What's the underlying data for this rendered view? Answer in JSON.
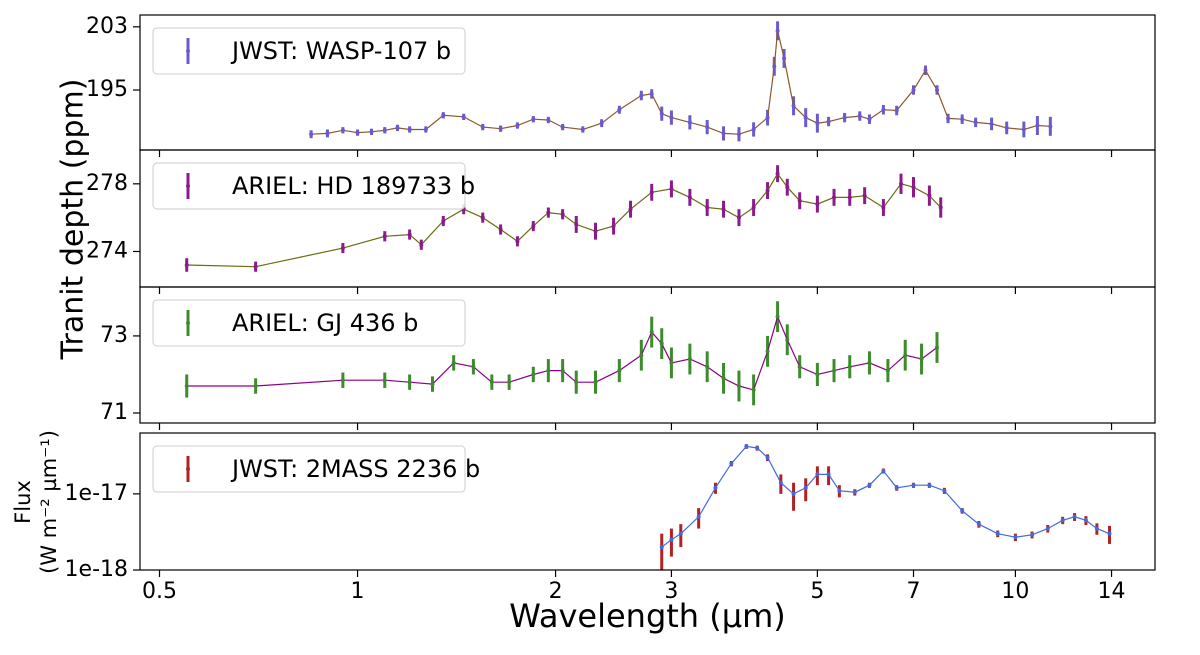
{
  "chart_data": [
    {
      "type": "errorbar",
      "ylabel": "Tranit depth (ppm)",
      "ylim": [
        187.4,
        204.5
      ],
      "yticks": [
        195,
        203
      ],
      "line_color": "#8b5a2b",
      "x": [
        0.85,
        0.9,
        0.95,
        1.0,
        1.05,
        1.1,
        1.15,
        1.2,
        1.27,
        1.35,
        1.45,
        1.55,
        1.65,
        1.75,
        1.85,
        1.95,
        2.05,
        2.2,
        2.35,
        2.5,
        2.7,
        2.8,
        2.9,
        3.0,
        3.2,
        3.4,
        3.6,
        3.8,
        4.0,
        4.2,
        4.3,
        4.35,
        4.45,
        4.6,
        4.8,
        5.0,
        5.2,
        5.5,
        5.8,
        6.0,
        6.3,
        6.6,
        7.0,
        7.3,
        7.6,
        7.9,
        8.3,
        8.7,
        9.2,
        9.7,
        10.3,
        10.8,
        11.3
      ],
      "series": [
        {
          "name": "JWST: WASP-107 b",
          "color": "#6a5acd",
          "values": [
            189.4,
            189.5,
            189.9,
            189.6,
            189.7,
            189.9,
            190.2,
            190.0,
            190.0,
            191.8,
            191.6,
            190.3,
            190.1,
            190.5,
            191.3,
            191.2,
            190.3,
            190.0,
            190.8,
            192.5,
            194.3,
            194.5,
            192.0,
            191.5,
            190.9,
            190.3,
            189.5,
            189.4,
            190.0,
            191.5,
            198.0,
            202.5,
            199.0,
            193.0,
            191.5,
            190.8,
            191.0,
            191.5,
            191.7,
            191.3,
            192.5,
            192.4,
            195.0,
            197.5,
            195.0,
            191.4,
            191.3,
            190.9,
            190.7,
            190.2,
            190.0,
            190.5,
            190.4
          ],
          "errors": [
            0.5,
            0.5,
            0.4,
            0.4,
            0.4,
            0.4,
            0.4,
            0.4,
            0.4,
            0.4,
            0.4,
            0.4,
            0.4,
            0.4,
            0.4,
            0.4,
            0.4,
            0.4,
            0.5,
            0.5,
            0.6,
            0.6,
            0.9,
            0.9,
            0.9,
            0.9,
            0.9,
            0.9,
            0.9,
            1.0,
            1.2,
            1.2,
            1.2,
            1.2,
            1.2,
            1.2,
            0.6,
            0.6,
            0.6,
            0.6,
            0.6,
            0.6,
            0.6,
            0.6,
            0.6,
            0.6,
            0.6,
            0.6,
            0.8,
            0.8,
            1.0,
            1.2,
            1.2
          ]
        }
      ]
    },
    {
      "type": "errorbar",
      "ylim": [
        271.9,
        280
      ],
      "yticks": [
        274,
        278
      ],
      "line_color": "#6b6b10",
      "x": [
        0.55,
        0.7,
        0.95,
        1.1,
        1.2,
        1.25,
        1.35,
        1.45,
        1.55,
        1.65,
        1.75,
        1.85,
        1.95,
        2.05,
        2.15,
        2.3,
        2.45,
        2.6,
        2.8,
        3.0,
        3.2,
        3.4,
        3.6,
        3.8,
        4.0,
        4.2,
        4.35,
        4.5,
        4.7,
        5.0,
        5.3,
        5.6,
        5.9,
        6.3,
        6.7,
        7.0,
        7.4,
        7.7
      ],
      "series": [
        {
          "name": "ARIEL: HD 189733 b",
          "color": "#8b1a8b",
          "values": [
            273.2,
            273.1,
            274.2,
            274.9,
            275.0,
            274.4,
            275.8,
            276.5,
            276.0,
            275.3,
            274.6,
            275.5,
            276.3,
            276.2,
            275.6,
            275.2,
            275.5,
            276.5,
            277.5,
            277.7,
            277.2,
            276.6,
            276.5,
            276.0,
            276.6,
            277.6,
            278.6,
            277.8,
            277.0,
            276.8,
            277.2,
            277.2,
            277.3,
            276.6,
            278.0,
            277.8,
            277.3,
            276.6
          ],
          "errors": [
            0.4,
            0.3,
            0.3,
            0.3,
            0.3,
            0.3,
            0.3,
            0.3,
            0.3,
            0.3,
            0.3,
            0.3,
            0.3,
            0.3,
            0.5,
            0.5,
            0.5,
            0.5,
            0.5,
            0.5,
            0.5,
            0.5,
            0.5,
            0.5,
            0.5,
            0.5,
            0.5,
            0.5,
            0.5,
            0.5,
            0.5,
            0.5,
            0.5,
            0.5,
            0.6,
            0.6,
            0.6,
            0.6
          ]
        }
      ]
    },
    {
      "type": "errorbar",
      "ylim": [
        70.74,
        74.27
      ],
      "yticks": [
        71,
        73
      ],
      "line_color": "#8b008b",
      "x": [
        0.55,
        0.7,
        0.95,
        1.1,
        1.2,
        1.3,
        1.4,
        1.5,
        1.6,
        1.7,
        1.85,
        1.95,
        2.05,
        2.15,
        2.3,
        2.5,
        2.7,
        2.8,
        2.9,
        3.0,
        3.2,
        3.4,
        3.6,
        3.8,
        4.0,
        4.2,
        4.35,
        4.5,
        4.7,
        5.0,
        5.3,
        5.6,
        6.0,
        6.4,
        6.8,
        7.2,
        7.6
      ],
      "series": [
        {
          "name": "ARIEL: GJ 436 b",
          "color": "#3c8c2c",
          "values": [
            71.7,
            71.7,
            71.85,
            71.85,
            71.8,
            71.75,
            72.3,
            72.2,
            71.8,
            71.8,
            72.0,
            72.1,
            72.1,
            71.8,
            71.8,
            72.1,
            72.5,
            73.1,
            72.8,
            72.3,
            72.4,
            72.2,
            71.9,
            71.7,
            71.6,
            72.6,
            73.5,
            72.9,
            72.2,
            72.0,
            72.1,
            72.2,
            72.3,
            72.1,
            72.5,
            72.4,
            72.7
          ],
          "errors": [
            0.3,
            0.2,
            0.2,
            0.2,
            0.2,
            0.2,
            0.2,
            0.2,
            0.2,
            0.2,
            0.2,
            0.3,
            0.3,
            0.3,
            0.3,
            0.3,
            0.4,
            0.4,
            0.4,
            0.4,
            0.4,
            0.4,
            0.4,
            0.4,
            0.4,
            0.4,
            0.4,
            0.4,
            0.3,
            0.3,
            0.3,
            0.3,
            0.3,
            0.3,
            0.4,
            0.4,
            0.4
          ]
        }
      ]
    },
    {
      "type": "errorbar",
      "ylabel": [
        "Flux",
        "(W m⁻² µm⁻¹)"
      ],
      "yscale": "log",
      "ylim": [
        1e-18,
        6.3e-17
      ],
      "yticks": [
        {
          "value": 1e-18,
          "label": "1e-18"
        },
        {
          "value": 1e-17,
          "label": "1e-17"
        }
      ],
      "xlabel": "Wavelength (µm)",
      "xscale": "log",
      "xlim": [
        0.467,
        16.3
      ],
      "xticks": [
        0.5,
        1,
        2,
        3,
        5,
        7,
        10,
        14
      ],
      "line_color": "#4169e1",
      "x": [
        2.9,
        3.0,
        3.1,
        3.3,
        3.5,
        3.7,
        3.9,
        4.05,
        4.2,
        4.4,
        4.6,
        4.8,
        5.0,
        5.2,
        5.4,
        5.7,
        6.0,
        6.3,
        6.6,
        7.0,
        7.4,
        7.8,
        8.3,
        8.8,
        9.4,
        10.0,
        10.6,
        11.2,
        11.8,
        12.3,
        12.8,
        13.3,
        13.9
      ],
      "series": [
        {
          "name": "JWST: 2MASS 2236 b",
          "color": "#b22222",
          "values": [
            2e-18,
            2.5e-18,
            3e-18,
            5e-18,
            1.2e-17,
            2.5e-17,
            4.2e-17,
            4e-17,
            3e-17,
            1.4e-17,
            1e-17,
            1.2e-17,
            1.8e-17,
            1.8e-17,
            1.1e-17,
            1.05e-17,
            1.3e-17,
            2e-17,
            1.2e-17,
            1.3e-17,
            1.3e-17,
            1.1e-17,
            6e-18,
            4e-18,
            3e-18,
            2.7e-18,
            2.9e-18,
            3.5e-18,
            4.5e-18,
            5e-18,
            4.5e-18,
            3.5e-18,
            3e-18
          ],
          "errors": [
            1e-18,
            1e-18,
            1e-18,
            1.5e-18,
            2e-18,
            2e-18,
            3e-18,
            3e-18,
            3e-18,
            4e-18,
            4e-18,
            4e-18,
            5e-18,
            5e-18,
            2e-18,
            1e-18,
            1e-18,
            1.5e-18,
            1e-18,
            1e-18,
            1e-18,
            1e-18,
            5e-19,
            4e-19,
            3e-19,
            3e-19,
            3e-19,
            4e-19,
            5e-19,
            6e-19,
            6e-19,
            6e-19,
            8e-19
          ]
        }
      ]
    }
  ]
}
